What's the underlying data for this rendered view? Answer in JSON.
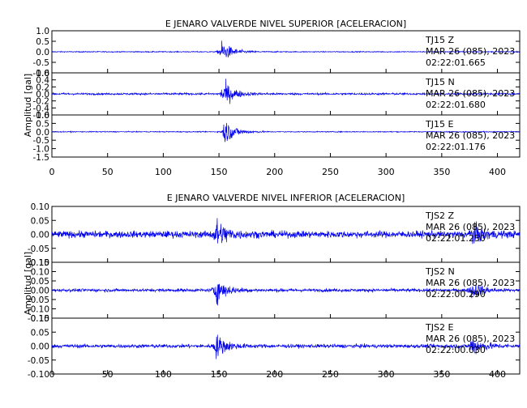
{
  "chart_data": [
    {
      "type": "line",
      "title": "E JENARO VALVERDE NIVEL SUPERIOR [ACELERACION]",
      "ylabel": "Amplitud [gal]",
      "xlim": [
        0,
        420
      ],
      "x_ticks": [
        "0",
        "50",
        "100",
        "150",
        "200",
        "250",
        "300",
        "350",
        "400"
      ],
      "grid": false,
      "traces": [
        {
          "station": "TJ15",
          "component": "Z",
          "date": "MAR 26 (085), 2023",
          "time": "02:22:01.665",
          "ylim": [
            -1.0,
            1.0
          ],
          "y_ticks": [
            "1.0",
            "0.5",
            "0.0",
            "-0.5",
            "-1.0"
          ],
          "color": "#0000ee",
          "noise": 0.04,
          "events": [
            {
              "t": 153,
              "amp": 0.9
            }
          ]
        },
        {
          "station": "TJ15",
          "component": "N",
          "date": "MAR 26 (085), 2023",
          "time": "02:22:01.680",
          "ylim": [
            -0.6,
            0.6
          ],
          "y_ticks": [
            "0.6",
            "0.4",
            "0.2",
            "0.0",
            "-0.2",
            "-0.4",
            "-0.6"
          ],
          "color": "#0000ee",
          "noise": 0.05,
          "events": [
            {
              "t": 155,
              "amp": 0.6
            }
          ]
        },
        {
          "station": "TJ15",
          "component": "E",
          "date": "MAR 26 (085), 2023",
          "time": "02:22:01.176",
          "ylim": [
            -1.5,
            1.0
          ],
          "y_ticks": [
            "1.0",
            "0.5",
            "0.0",
            "-0.5",
            "-1.0",
            "-1.5"
          ],
          "color": "#0000ee",
          "noise": 0.05,
          "events": [
            {
              "t": 156,
              "amp": 1.3
            }
          ]
        }
      ]
    },
    {
      "type": "line",
      "title": "E JENARO VALVERDE NIVEL INFERIOR [ACELERACION]",
      "ylabel": "Amplitud [gal]",
      "xlim": [
        0,
        420
      ],
      "x_ticks": [
        "0",
        "50",
        "100",
        "150",
        "200",
        "250",
        "300",
        "350",
        "400"
      ],
      "grid": false,
      "traces": [
        {
          "station": "TJS2",
          "component": "Z",
          "date": "MAR 26 (085), 2023",
          "time": "02:22:01.250",
          "ylim": [
            -0.1,
            0.1
          ],
          "y_ticks": [
            "0.10",
            "0.05",
            "0.00",
            "-0.05",
            "-0.10"
          ],
          "color": "#0000ee",
          "noise": 0.022,
          "events": [
            {
              "t": 148,
              "amp": 0.09
            },
            {
              "t": 378,
              "amp": 0.06
            }
          ]
        },
        {
          "station": "TJS2",
          "component": "N",
          "date": "MAR 26 (085), 2023",
          "time": "02:22:00.290",
          "ylim": [
            -0.15,
            0.15
          ],
          "y_ticks": [
            "0.15",
            "0.10",
            "0.05",
            "0.00",
            "-0.05",
            "-0.10",
            "-0.15"
          ],
          "color": "#0000ee",
          "noise": 0.015,
          "events": [
            {
              "t": 148,
              "amp": 0.12
            },
            {
              "t": 378,
              "amp": 0.08
            }
          ]
        },
        {
          "station": "TJS2",
          "component": "E",
          "date": "MAR 26 (085), 2023",
          "time": "02:22:00.030",
          "ylim": [
            -0.1,
            0.1
          ],
          "y_ticks": [
            "0.10",
            "0.05",
            "0.00",
            "-0.05",
            "-0.10"
          ],
          "color": "#0000ee",
          "noise": 0.012,
          "events": [
            {
              "t": 148,
              "amp": 0.07
            },
            {
              "t": 378,
              "amp": 0.06
            }
          ]
        }
      ]
    }
  ]
}
